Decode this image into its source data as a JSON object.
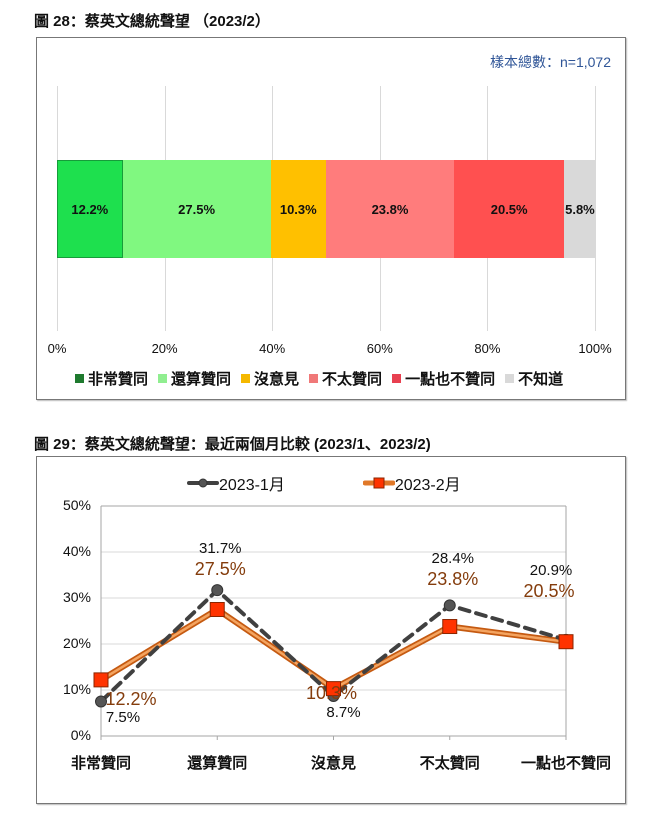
{
  "figure28": {
    "title": "圖 28：蔡英文總統聲望 （2023/2）",
    "sample_note": "樣本總數：n=1,072"
  },
  "figure29": {
    "title": "圖 29：蔡英文總統聲望：最近兩個月比較 (2023/1、2023/2)"
  },
  "chart_data": [
    {
      "type": "bar",
      "orientation": "horizontal-stacked-100",
      "title": "圖 28：蔡英文總統聲望 （2023/2）",
      "annotation": "樣本總數：n=1,072",
      "categories": [
        "非常贊同",
        "還算贊同",
        "沒意見",
        "不太贊同",
        "一點也不贊同",
        "不知道"
      ],
      "values": [
        12.2,
        27.5,
        10.3,
        23.8,
        20.5,
        5.8
      ],
      "value_labels": [
        "12.2%",
        "27.5%",
        "10.3%",
        "23.8%",
        "20.5%",
        "5.8%"
      ],
      "colors": [
        "#1ee04e",
        "#80f880",
        "#ffc000",
        "#ff7c7c",
        "#ff5050",
        "#d9d9d9"
      ],
      "legend_colors": [
        "#1e7a2e",
        "#90ee90",
        "#f5b800",
        "#f07878",
        "#e84050",
        "#d9d9d9"
      ],
      "x_ticks": [
        "0%",
        "20%",
        "40%",
        "60%",
        "80%",
        "100%"
      ],
      "xlim": [
        0,
        100
      ],
      "grid": true,
      "legend_position": "bottom"
    },
    {
      "type": "line",
      "title": "圖 29：蔡英文總統聲望：最近兩個月比較 (2023/1、2023/2)",
      "categories": [
        "非常贊同",
        "還算贊同",
        "沒意見",
        "不太贊同",
        "一點也不贊同"
      ],
      "series": [
        {
          "name": "2023-1月",
          "values": [
            7.5,
            31.7,
            8.7,
            28.4,
            20.9
          ],
          "labels": [
            "7.5%",
            "31.7%",
            "8.7%",
            "28.4%",
            "20.9%"
          ],
          "color": "#404040",
          "style": "dashed",
          "marker": "circle"
        },
        {
          "name": "2023-2月",
          "values": [
            12.2,
            27.5,
            10.3,
            23.8,
            20.5
          ],
          "labels": [
            "12.2%",
            "27.5%",
            "10.3%",
            "23.8%",
            "20.5%"
          ],
          "color": "#e07828",
          "style": "solid",
          "marker": "square",
          "marker_color": "#ff3300",
          "label_color": "#843c0c"
        }
      ],
      "y_ticks": [
        "0%",
        "10%",
        "20%",
        "30%",
        "40%",
        "50%"
      ],
      "ylim": [
        0,
        50
      ],
      "grid": true,
      "legend_position": "top"
    }
  ]
}
